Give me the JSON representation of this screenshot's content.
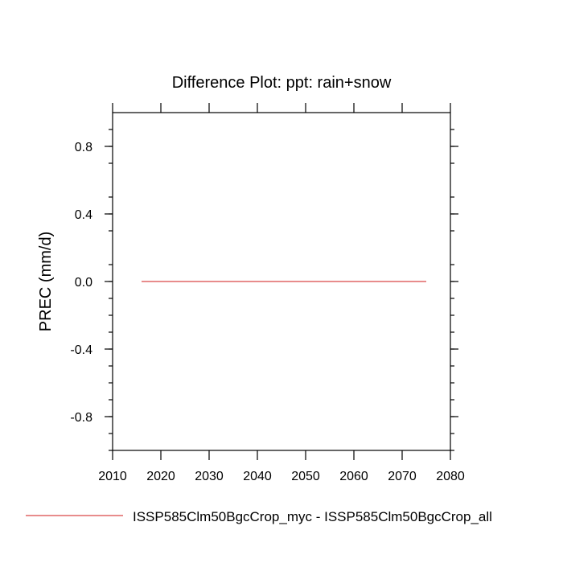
{
  "chart_data": {
    "type": "line",
    "title": "Difference Plot: ppt: rain+snow",
    "ylabel": "PREC  (mm/d)",
    "xlabel": "",
    "xlim": [
      2010,
      2080
    ],
    "ylim": [
      -1,
      1
    ],
    "x_ticks": [
      2010,
      2020,
      2030,
      2040,
      2050,
      2060,
      2070,
      2080
    ],
    "x_tick_labels": [
      "2010",
      "2020",
      "2030",
      "2040",
      "2050",
      "2060",
      "2070",
      "2080"
    ],
    "y_ticks": [
      0.8,
      0.4,
      0.0,
      -0.4,
      -0.8
    ],
    "y_tick_labels": [
      "0.8",
      "0.4",
      "0.0",
      "-0.4",
      "-0.8"
    ],
    "grid": false,
    "legend_position": "bottom",
    "series": [
      {
        "name": "ISSP585Clm50BgcCrop_myc - ISSP585Clm50BgcCrop_all",
        "color": "#e06666",
        "x": [
          2016,
          2075
        ],
        "y": [
          0.0,
          0.0
        ]
      }
    ]
  }
}
